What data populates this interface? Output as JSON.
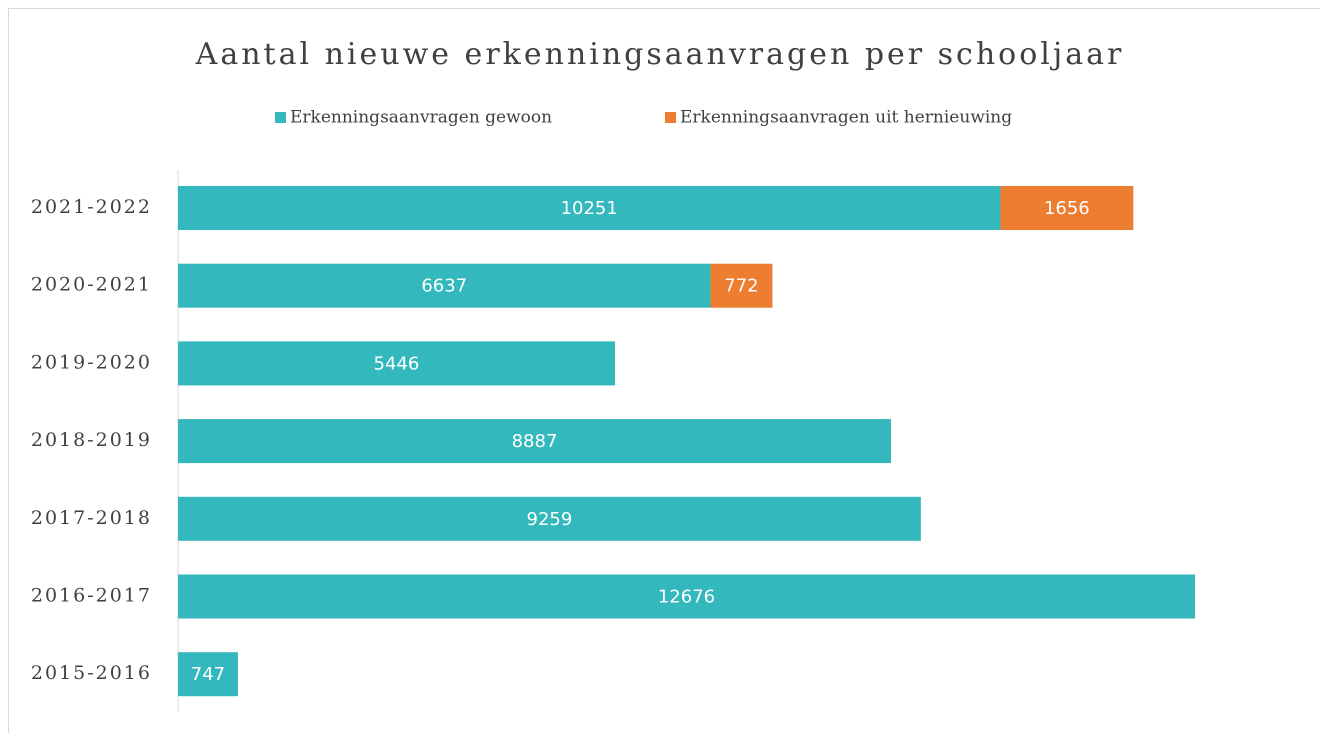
{
  "chart_data": {
    "type": "stacked-bar-horizontal",
    "title": "Aantal nieuwe erkenningsaanvragen per schooljaar",
    "categories": [
      "2021-2022",
      "2020-2021",
      "2019-2020",
      "2018-2019",
      "2017-2018",
      "2016-2017",
      "2015-2016"
    ],
    "series": [
      {
        "name": "Erkenningsaanvragen gewoon",
        "color": "#33b8bd",
        "values": [
          10251,
          6637,
          5446,
          8887,
          9259,
          12676,
          747
        ]
      },
      {
        "name": "Erkenningsaanvragen uit hernieuwing",
        "color": "#ed7d31",
        "values": [
          1656,
          772,
          null,
          null,
          null,
          null,
          null
        ]
      }
    ],
    "legend": "top"
  }
}
